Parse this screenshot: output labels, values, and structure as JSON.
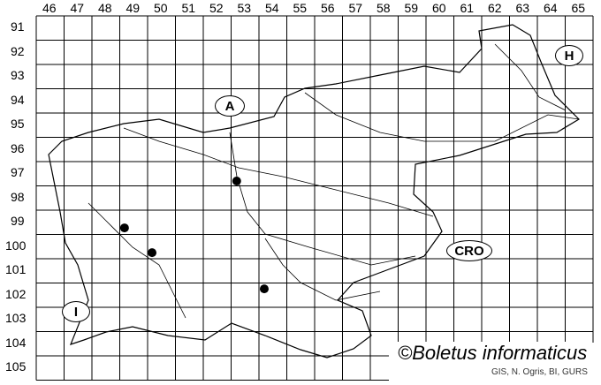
{
  "grid": {
    "columns": [
      "46",
      "47",
      "48",
      "49",
      "50",
      "51",
      "52",
      "53",
      "54",
      "55",
      "56",
      "57",
      "58",
      "59",
      "60",
      "61",
      "62",
      "63",
      "64",
      "65"
    ],
    "rows": [
      "91",
      "92",
      "93",
      "94",
      "95",
      "96",
      "97",
      "98",
      "99",
      "100",
      "101",
      "102",
      "103",
      "104",
      "105"
    ]
  },
  "country_labels": [
    {
      "id": "austria",
      "text": "A"
    },
    {
      "id": "hungary",
      "text": "H"
    },
    {
      "id": "croatia",
      "text": "CRO"
    },
    {
      "id": "italy",
      "text": "I"
    }
  ],
  "records": [
    {
      "col": 53.2,
      "row": 97.8
    },
    {
      "col": 49.17,
      "row": 99.73
    },
    {
      "col": 50.16,
      "row": 100.75
    },
    {
      "col": 54.19,
      "row": 102.24
    }
  ],
  "watermark": "©Boletus informaticus",
  "credit": "GIS, N. Ogris, BI, GURS",
  "colors": {
    "lines": "#000000",
    "points": "#000000"
  }
}
